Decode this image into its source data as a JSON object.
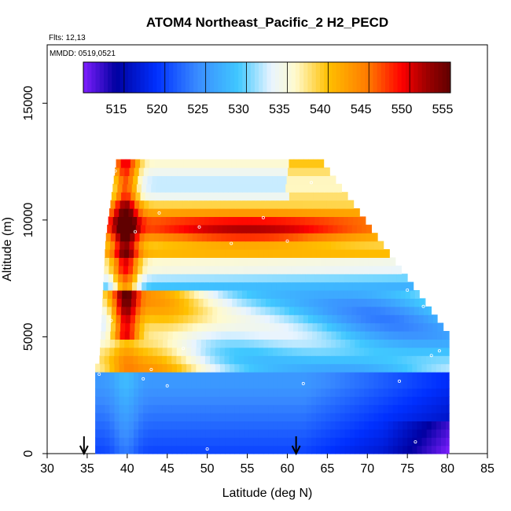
{
  "chart_data": {
    "type": "heatmap",
    "title": "ATOM4 Northeast_Pacific_2 H2_PECD",
    "flights_label": "Flts: 12,13",
    "date_label": "MMDD: 0519,0521",
    "xlabel": "Latitude (deg N)",
    "ylabel": "Altitude (m)",
    "xlim": [
      30,
      85
    ],
    "ylim": [
      0,
      17500
    ],
    "x_ticks": [
      "30",
      "35",
      "40",
      "45",
      "50",
      "55",
      "60",
      "65",
      "70",
      "75",
      "80",
      "85"
    ],
    "y_ticks": [
      "0",
      "5000",
      "10000",
      "15000"
    ],
    "colorbar": {
      "range": [
        510,
        555
      ],
      "ticks": [
        "515",
        "520",
        "525",
        "530",
        "535",
        "540",
        "545",
        "550",
        "555"
      ],
      "colors": [
        "#7f1fff",
        "#0000a0",
        "#0030ff",
        "#3a8cff",
        "#40c8ff",
        "#e8f4ff",
        "#fffacd",
        "#ffc000",
        "#ff6000",
        "#ff0000",
        "#a00000",
        "#600000"
      ]
    },
    "profile_markers_lat": [
      34.6,
      61.1
    ],
    "grid": false,
    "legend": "colorbar top"
  }
}
